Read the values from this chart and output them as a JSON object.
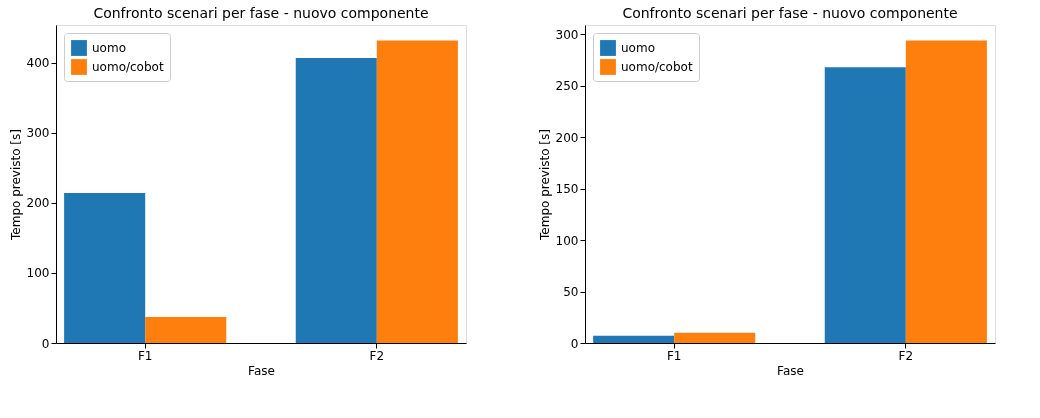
{
  "chart_data": [
    {
      "type": "bar",
      "title": "Confronto scenari per fase - nuovo componente",
      "xlabel": "Fase",
      "ylabel": "Tempo previsto [s]",
      "categories": [
        "F1",
        "F2"
      ],
      "series": [
        {
          "name": "uomo",
          "color": "#1f77b4",
          "values": [
            214,
            407
          ]
        },
        {
          "name": "uomo/cobot",
          "color": "#ff7f0e",
          "values": [
            37,
            432
          ]
        }
      ],
      "ylim": [
        0,
        454
      ],
      "yticks": [
        0,
        100,
        200,
        300,
        400
      ],
      "grid": false,
      "legend": "top left"
    },
    {
      "type": "bar",
      "title": "Confronto scenari per fase - nuovo componente",
      "xlabel": "Fase",
      "ylabel": "Tempo previsto [s]",
      "categories": [
        "F1",
        "F2"
      ],
      "series": [
        {
          "name": "uomo",
          "color": "#1f77b4",
          "values": [
            7,
            268
          ]
        },
        {
          "name": "uomo/cobot",
          "color": "#ff7f0e",
          "values": [
            10,
            294
          ]
        }
      ],
      "ylim": [
        0,
        309
      ],
      "yticks": [
        0,
        50,
        100,
        150,
        200,
        250,
        300
      ],
      "grid": false,
      "legend": "top left"
    }
  ]
}
